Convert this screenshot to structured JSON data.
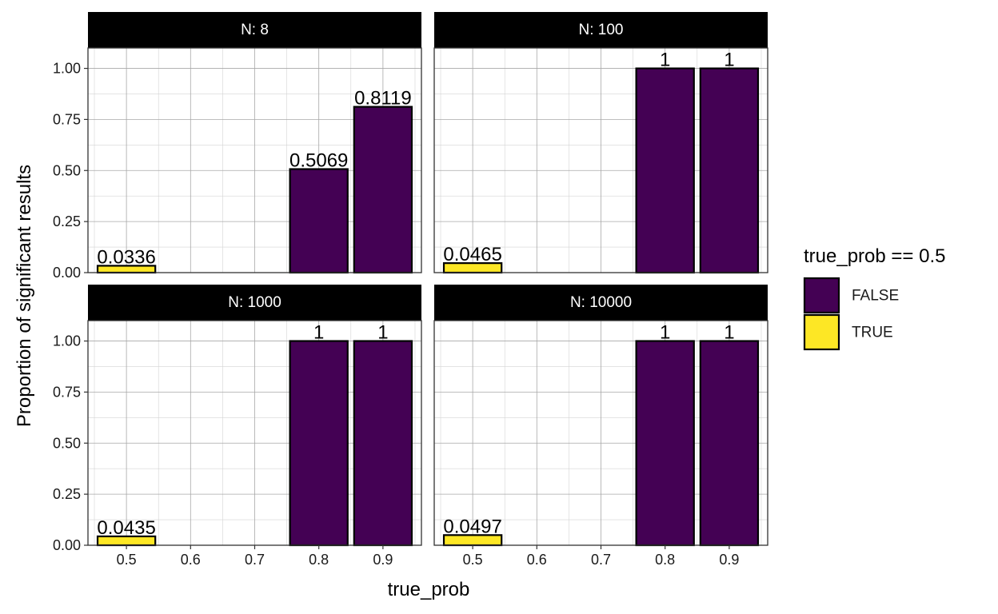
{
  "chart_data": {
    "type": "bar",
    "x": [
      0.5,
      0.6,
      0.7,
      0.8,
      0.9
    ],
    "xlabel": "true_prob",
    "ylabel": "Proportion of significant results",
    "xticks": [
      "0.5",
      "0.6",
      "0.7",
      "0.8",
      "0.9"
    ],
    "yticks": [
      "0.00",
      "0.25",
      "0.50",
      "0.75",
      "1.00"
    ],
    "ylim": [
      0,
      1.1
    ],
    "xlim": [
      0.44,
      0.96
    ],
    "grid": true,
    "legend": {
      "title": "true_prob == 0.5",
      "position": "right",
      "entries": [
        {
          "label": "FALSE",
          "color": "#440154"
        },
        {
          "label": "TRUE",
          "color": "#FDE725"
        }
      ]
    },
    "facets": [
      {
        "title": "N: 8",
        "bars": [
          {
            "x": 0.5,
            "value": 0.0336,
            "label": "0.0336",
            "group": "TRUE"
          },
          {
            "x": 0.8,
            "value": 0.5069,
            "label": "0.5069",
            "group": "FALSE"
          },
          {
            "x": 0.9,
            "value": 0.8119,
            "label": "0.8119",
            "group": "FALSE"
          }
        ]
      },
      {
        "title": "N: 100",
        "bars": [
          {
            "x": 0.5,
            "value": 0.0465,
            "label": "0.0465",
            "group": "TRUE"
          },
          {
            "x": 0.8,
            "value": 1,
            "label": "1",
            "group": "FALSE"
          },
          {
            "x": 0.9,
            "value": 1,
            "label": "1",
            "group": "FALSE"
          }
        ]
      },
      {
        "title": "N: 1000",
        "bars": [
          {
            "x": 0.5,
            "value": 0.0435,
            "label": "0.0435",
            "group": "TRUE"
          },
          {
            "x": 0.8,
            "value": 1,
            "label": "1",
            "group": "FALSE"
          },
          {
            "x": 0.9,
            "value": 1,
            "label": "1",
            "group": "FALSE"
          }
        ]
      },
      {
        "title": "N: 10000",
        "bars": [
          {
            "x": 0.5,
            "value": 0.0497,
            "label": "0.0497",
            "group": "TRUE"
          },
          {
            "x": 0.8,
            "value": 1,
            "label": "1",
            "group": "FALSE"
          },
          {
            "x": 0.9,
            "value": 1,
            "label": "1",
            "group": "FALSE"
          }
        ]
      }
    ]
  }
}
